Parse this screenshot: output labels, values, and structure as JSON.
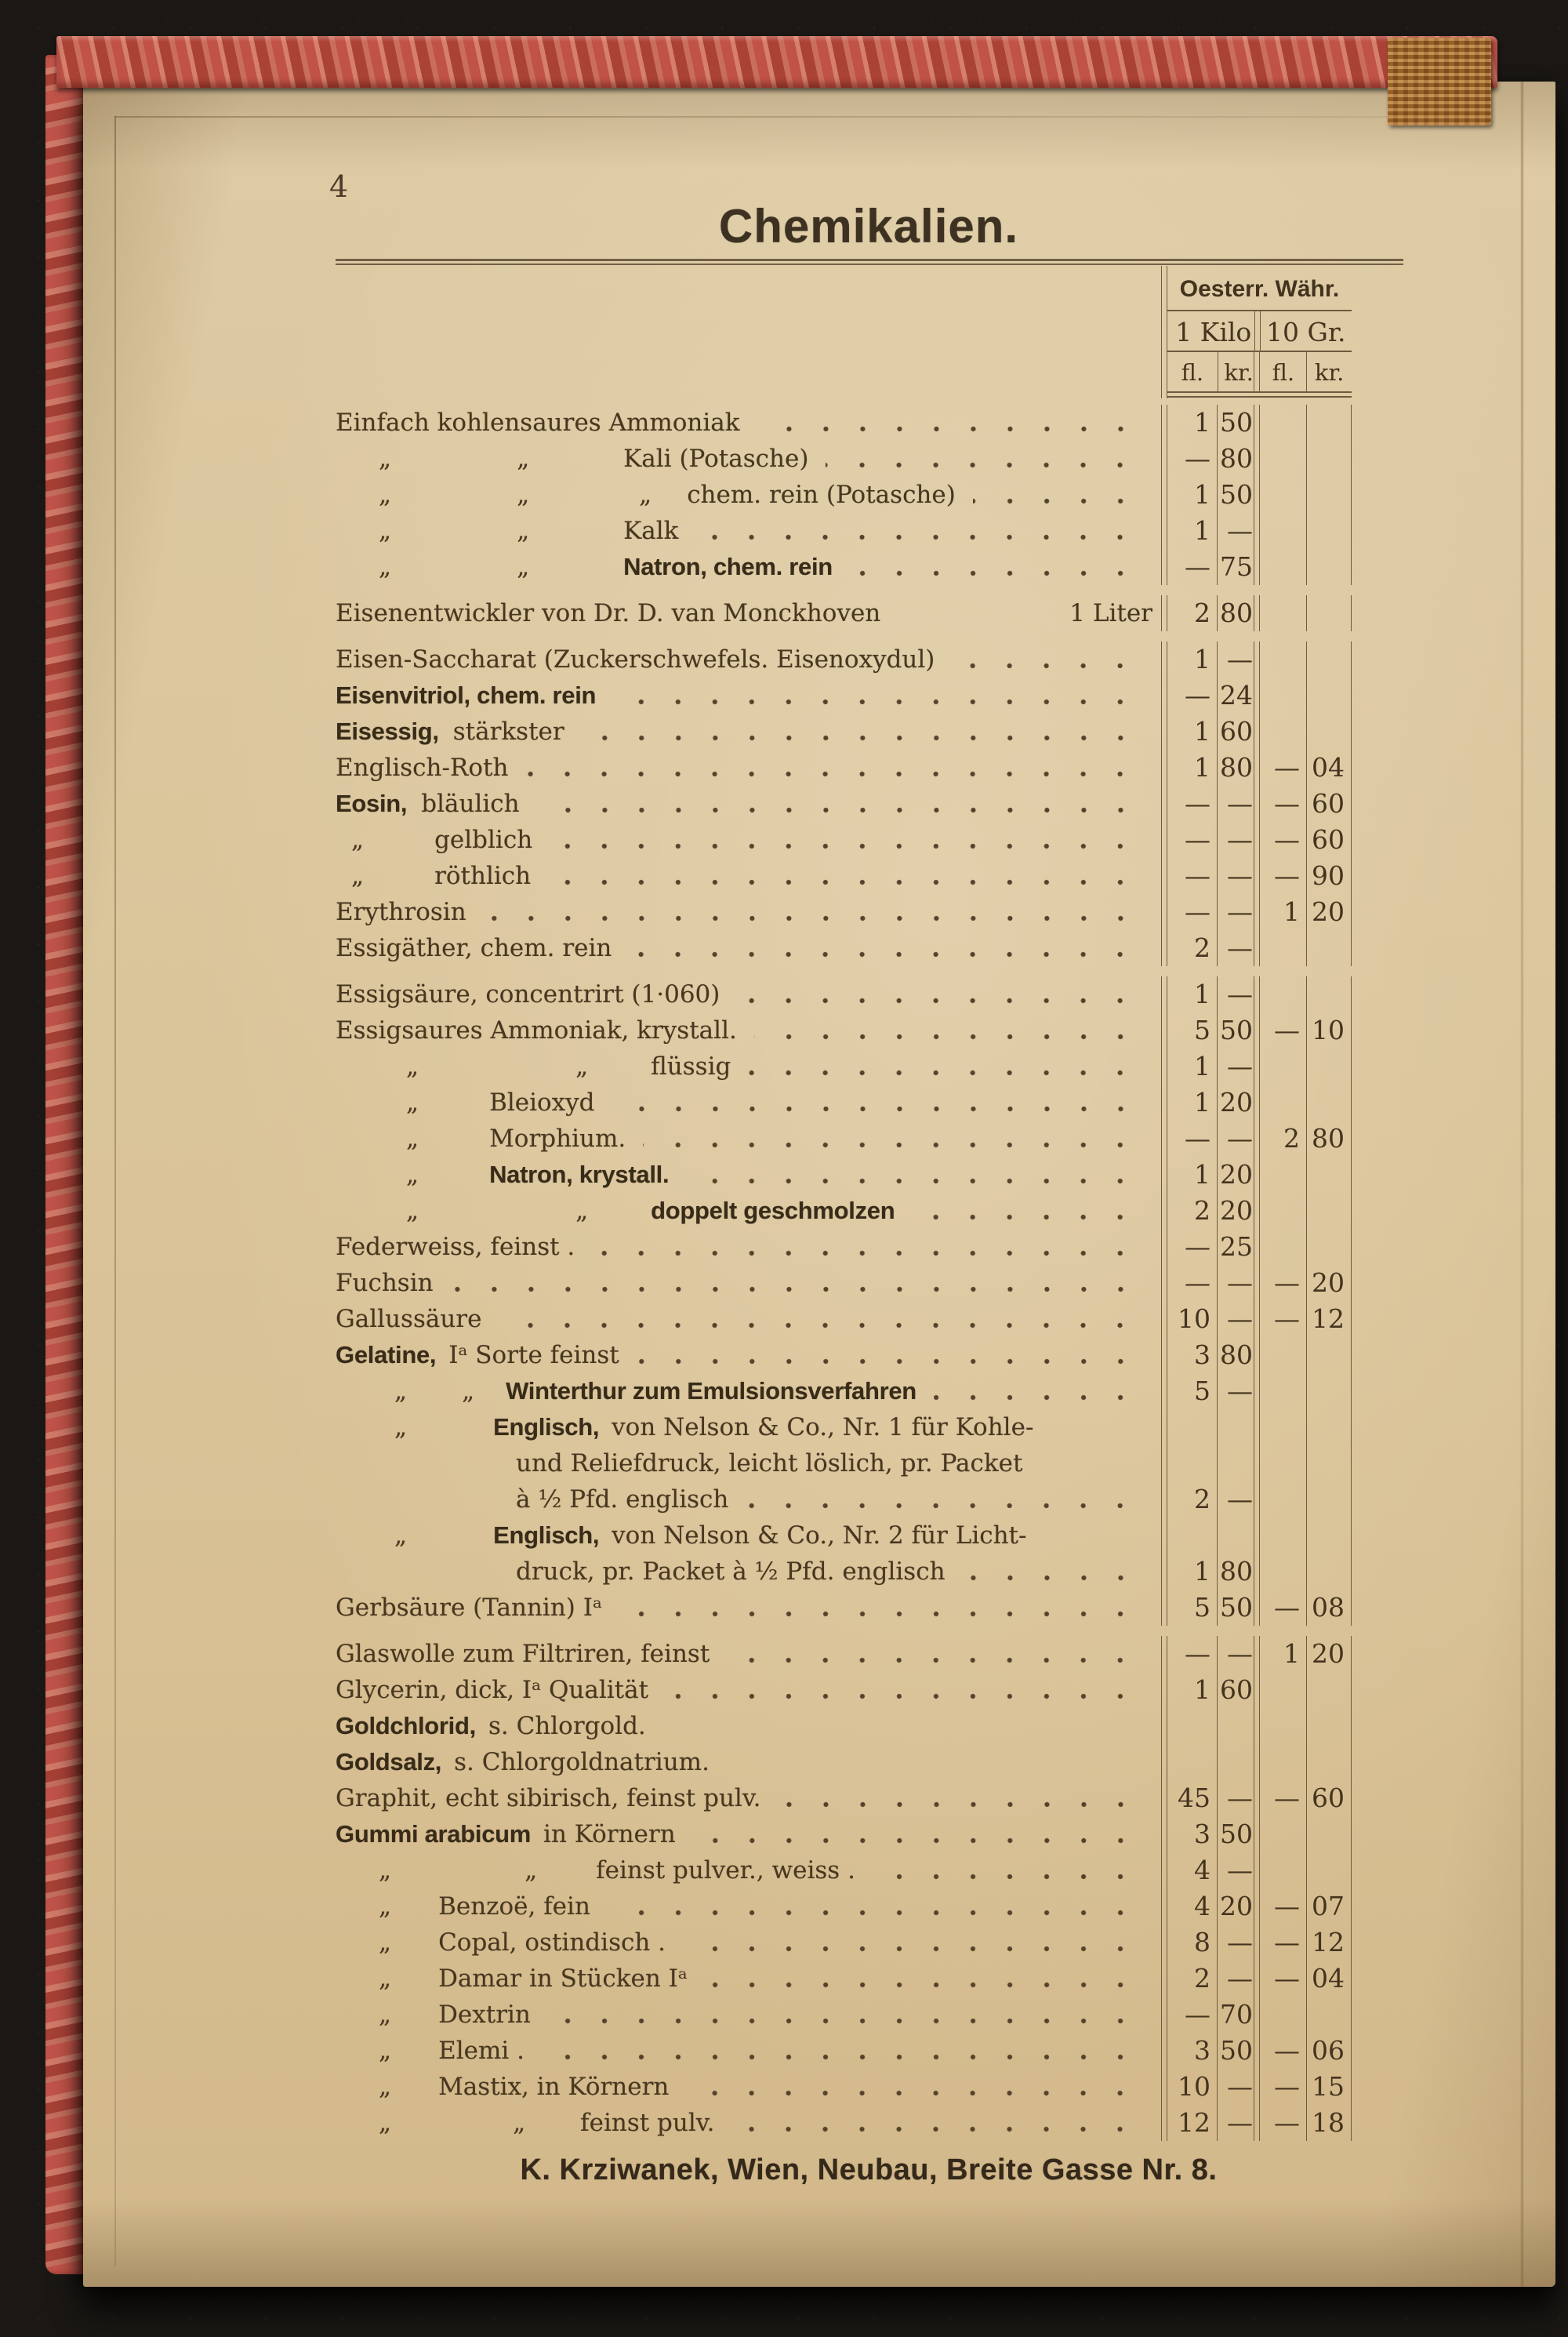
{
  "page": {
    "number": "4",
    "title": "Chemikalien.",
    "footer": "K. Krziwanek, Wien, Neubau, Breite Gasse Nr. 8."
  },
  "table": {
    "currency_header": "Oesterr. Währ.",
    "unit_headers": [
      "1 Kilo",
      "10 Gr."
    ],
    "sub_headers": [
      "fl.",
      "kr.",
      "fl.",
      "kr."
    ],
    "rows": [
      {
        "parts": [
          {
            "t": "Einfach kohlensaures Ammoniak"
          }
        ],
        "dots": 1,
        "p": [
          "1",
          "50",
          "",
          ""
        ]
      },
      {
        "parts": [
          {
            "t": "„",
            "ml": 55
          },
          {
            "t": "„",
            "ml": 160
          },
          {
            "t": "Kali (Potasche)",
            "ml": 120
          }
        ],
        "dots": 1,
        "p": [
          "—",
          "80",
          "",
          ""
        ]
      },
      {
        "parts": [
          {
            "t": "„",
            "ml": 55
          },
          {
            "t": "„",
            "ml": 160
          },
          {
            "t": "„",
            "ml": 140
          },
          {
            "t": "chem. rein (Potasche)",
            "ml": 45
          }
        ],
        "dots": 1,
        "p": [
          "1",
          "50",
          "",
          ""
        ]
      },
      {
        "parts": [
          {
            "t": "„",
            "ml": 55
          },
          {
            "t": "„",
            "ml": 160
          },
          {
            "t": "Kalk",
            "ml": 120
          }
        ],
        "dots": 1,
        "p": [
          "1",
          "—",
          "",
          ""
        ]
      },
      {
        "parts": [
          {
            "t": "„",
            "ml": 55
          },
          {
            "t": "„",
            "ml": 160
          },
          {
            "t": "Natron, chem. rein",
            "b": 1,
            "ml": 120
          }
        ],
        "dots": 1,
        "p": [
          "—",
          "75",
          "",
          ""
        ]
      },
      {
        "parts": [
          {
            "t": "Eisenentwickler von Dr. D. van Monckhoven"
          },
          {
            "t": "1 Liter",
            "push": 1
          }
        ],
        "dots": 0,
        "p": [
          "2",
          "80",
          "",
          ""
        ],
        "gap": 1
      },
      {
        "parts": [
          {
            "t": "Eisen-Saccharat (Zuckerschwefels. Eisenoxydul)"
          }
        ],
        "dots": 1,
        "p": [
          "1",
          "—",
          "",
          ""
        ],
        "gap": 1
      },
      {
        "parts": [
          {
            "t": "Eisenvitriol, chem. rein",
            "b": 1
          }
        ],
        "dots": 1,
        "p": [
          "—",
          "24",
          "",
          ""
        ]
      },
      {
        "parts": [
          {
            "t": "Eisessig,",
            "b": 1
          },
          {
            "t": "stärkster",
            "ml": 18
          }
        ],
        "dots": 1,
        "p": [
          "1",
          "60",
          "",
          ""
        ]
      },
      {
        "parts": [
          {
            "t": "Englisch-Roth"
          }
        ],
        "dots": 1,
        "p": [
          "1",
          "80",
          "—",
          "04"
        ]
      },
      {
        "parts": [
          {
            "t": "Eosin,",
            "b": 1
          },
          {
            "t": "bläulich",
            "ml": 18
          }
        ],
        "dots": 1,
        "p": [
          "—",
          "—",
          "—",
          "60"
        ]
      },
      {
        "parts": [
          {
            "t": "„",
            "ml": 20
          },
          {
            "t": "gelblich",
            "ml": 90
          }
        ],
        "dots": 1,
        "p": [
          "—",
          "—",
          "—",
          "60"
        ]
      },
      {
        "parts": [
          {
            "t": "„",
            "ml": 20
          },
          {
            "t": "röthlich",
            "ml": 90
          }
        ],
        "dots": 1,
        "p": [
          "—",
          "—",
          "—",
          "90"
        ]
      },
      {
        "parts": [
          {
            "t": "Erythrosin"
          }
        ],
        "dots": 1,
        "p": [
          "—",
          "—",
          "1",
          "20"
        ]
      },
      {
        "parts": [
          {
            "t": "Essigäther, chem. rein"
          }
        ],
        "dots": 1,
        "p": [
          "2",
          "—",
          "",
          ""
        ]
      },
      {
        "parts": [
          {
            "t": "Essigsäure, concentrirt (1·060)"
          }
        ],
        "dots": 1,
        "p": [
          "1",
          "—",
          "",
          ""
        ],
        "gap": 1
      },
      {
        "parts": [
          {
            "t": "Essigsaures Ammoniak, krystall."
          }
        ],
        "dots": 1,
        "p": [
          "5",
          "50",
          "—",
          "10"
        ]
      },
      {
        "parts": [
          {
            "t": "„",
            "ml": 90
          },
          {
            "t": "„",
            "ml": 200
          },
          {
            "t": "flüssig",
            "ml": 80
          }
        ],
        "dots": 1,
        "p": [
          "1",
          "—",
          "",
          ""
        ]
      },
      {
        "parts": [
          {
            "t": "„",
            "ml": 90
          },
          {
            "t": "Bleioxyd",
            "ml": 90
          }
        ],
        "dots": 1,
        "p": [
          "1",
          "20",
          "",
          ""
        ]
      },
      {
        "parts": [
          {
            "t": "„",
            "ml": 90
          },
          {
            "t": "Morphium.",
            "ml": 90
          }
        ],
        "dots": 1,
        "p": [
          "—",
          "—",
          "2",
          "80"
        ]
      },
      {
        "parts": [
          {
            "t": "„",
            "ml": 90
          },
          {
            "t": "Natron, krystall.",
            "b": 1,
            "ml": 90
          }
        ],
        "dots": 1,
        "p": [
          "1",
          "20",
          "",
          ""
        ]
      },
      {
        "parts": [
          {
            "t": "„",
            "ml": 90
          },
          {
            "t": "„",
            "ml": 200
          },
          {
            "t": "doppelt geschmolzen",
            "b": 1,
            "ml": 80
          }
        ],
        "dots": 1,
        "p": [
          "2",
          "20",
          "",
          ""
        ]
      },
      {
        "parts": [
          {
            "t": "Federweiss, feinst ."
          }
        ],
        "dots": 1,
        "p": [
          "—",
          "25",
          "",
          ""
        ]
      },
      {
        "parts": [
          {
            "t": "Fuchsin"
          }
        ],
        "dots": 1,
        "p": [
          "—",
          "—",
          "—",
          "20"
        ]
      },
      {
        "parts": [
          {
            "t": "Gallussäure"
          }
        ],
        "dots": 1,
        "p": [
          "10",
          "—",
          "—",
          "12"
        ]
      },
      {
        "parts": [
          {
            "t": "Gelatine,",
            "b": 1
          },
          {
            "t": "Iᵃ Sorte feinst",
            "ml": 16
          }
        ],
        "dots": 1,
        "p": [
          "3",
          "80",
          "",
          ""
        ]
      },
      {
        "parts": [
          {
            "t": "„",
            "ml": 75
          },
          {
            "t": "„",
            "ml": 70
          },
          {
            "t": "Winterthur zum Emulsionsverfahren",
            "b": 1,
            "ml": 40
          }
        ],
        "dots": 1,
        "p": [
          "5",
          "—",
          "",
          ""
        ]
      },
      {
        "parts": [
          {
            "t": "„",
            "ml": 75
          },
          {
            "t": "Englisch,",
            "b": 1,
            "ml": 110
          },
          {
            "t": "von Nelson & Co., Nr. 1 für Kohle-",
            "ml": 16
          }
        ],
        "dots": 0,
        "p": [
          "",
          "",
          "",
          ""
        ]
      },
      {
        "parts": [
          {
            "t": "und Reliefdruck, leicht löslich, pr. Packet",
            "ml": 230
          }
        ],
        "dots": 0,
        "p": [
          "",
          "",
          "",
          ""
        ]
      },
      {
        "parts": [
          {
            "t": "à ½ Pfd. englisch",
            "ml": 230
          }
        ],
        "dots": 1,
        "p": [
          "2",
          "—",
          "",
          ""
        ]
      },
      {
        "parts": [
          {
            "t": "„",
            "ml": 75
          },
          {
            "t": "Englisch,",
            "b": 1,
            "ml": 110
          },
          {
            "t": "von Nelson & Co., Nr. 2 für Licht-",
            "ml": 16
          }
        ],
        "dots": 0,
        "p": [
          "",
          "",
          "",
          ""
        ]
      },
      {
        "parts": [
          {
            "t": "druck, pr. Packet à ½ Pfd. englisch",
            "ml": 230
          }
        ],
        "dots": 1,
        "p": [
          "1",
          "80",
          "",
          ""
        ]
      },
      {
        "parts": [
          {
            "t": "Gerbsäure (Tannin) Iᵃ"
          }
        ],
        "dots": 1,
        "p": [
          "5",
          "50",
          "—",
          "08"
        ]
      },
      {
        "parts": [
          {
            "t": "Glaswolle zum Filtriren, feinst"
          }
        ],
        "dots": 1,
        "p": [
          "—",
          "—",
          "1",
          "20"
        ],
        "gap": 1
      },
      {
        "parts": [
          {
            "t": "Glycerin, dick, Iᵃ Qualität"
          }
        ],
        "dots": 1,
        "p": [
          "1",
          "60",
          "",
          ""
        ]
      },
      {
        "parts": [
          {
            "t": "Goldchlorid,",
            "b": 1
          },
          {
            "t": "s. Chlorgold.",
            "ml": 16
          }
        ],
        "dots": 0,
        "p": [
          "",
          "",
          "",
          ""
        ]
      },
      {
        "parts": [
          {
            "t": "Goldsalz,",
            "b": 1
          },
          {
            "t": "s. Chlorgoldnatrium.",
            "ml": 16
          }
        ],
        "dots": 0,
        "p": [
          "",
          "",
          "",
          ""
        ]
      },
      {
        "parts": [
          {
            "t": "Graphit, echt sibirisch, feinst pulv."
          }
        ],
        "dots": 1,
        "p": [
          "45",
          "—",
          "—",
          "60"
        ]
      },
      {
        "parts": [
          {
            "t": "Gummi arabicum",
            "b": 1
          },
          {
            "t": "in Körnern",
            "ml": 16
          }
        ],
        "dots": 1,
        "p": [
          "3",
          "50",
          "",
          ""
        ]
      },
      {
        "parts": [
          {
            "t": "„",
            "ml": 55
          },
          {
            "t": "„",
            "ml": 170
          },
          {
            "t": "feinst pulver., weiss .",
            "ml": 75
          }
        ],
        "dots": 1,
        "p": [
          "4",
          "—",
          "",
          ""
        ]
      },
      {
        "parts": [
          {
            "t": "„",
            "ml": 55
          },
          {
            "t": "Benzoë, fein",
            "ml": 60
          }
        ],
        "dots": 1,
        "p": [
          "4",
          "20",
          "—",
          "07"
        ]
      },
      {
        "parts": [
          {
            "t": "„",
            "ml": 55
          },
          {
            "t": "Copal, ostindisch .",
            "ml": 60
          }
        ],
        "dots": 1,
        "p": [
          "8",
          "—",
          "—",
          "12"
        ]
      },
      {
        "parts": [
          {
            "t": "„",
            "ml": 55
          },
          {
            "t": "Damar in Stücken Iᵃ",
            "ml": 60
          }
        ],
        "dots": 1,
        "p": [
          "2",
          "—",
          "—",
          "04"
        ]
      },
      {
        "parts": [
          {
            "t": "„",
            "ml": 55
          },
          {
            "t": "Dextrin",
            "ml": 60
          }
        ],
        "dots": 1,
        "p": [
          "—",
          "70",
          "",
          ""
        ]
      },
      {
        "parts": [
          {
            "t": "„",
            "ml": 55
          },
          {
            "t": "Elemi .",
            "ml": 60
          }
        ],
        "dots": 1,
        "p": [
          "3",
          "50",
          "—",
          "06"
        ]
      },
      {
        "parts": [
          {
            "t": "„",
            "ml": 55
          },
          {
            "t": "Mastix, in Körnern",
            "ml": 60
          }
        ],
        "dots": 1,
        "p": [
          "10",
          "—",
          "—",
          "15"
        ]
      },
      {
        "parts": [
          {
            "t": "„",
            "ml": 55
          },
          {
            "t": "„",
            "ml": 155
          },
          {
            "t": "feinst pulv.",
            "ml": 70
          }
        ],
        "dots": 1,
        "p": [
          "12",
          "—",
          "—",
          "18"
        ]
      }
    ]
  }
}
